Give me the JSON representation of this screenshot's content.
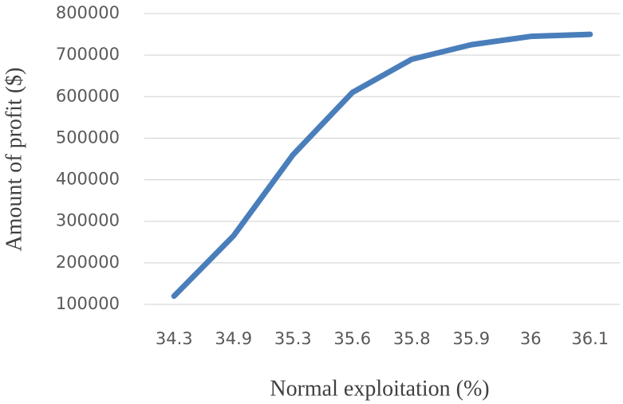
{
  "chart_data": {
    "type": "line",
    "x_label": "Normal exploitation (%)",
    "y_label": "Amount of profit ($)",
    "categories": [
      "34.3",
      "34.9",
      "35.3",
      "35.6",
      "35.8",
      "35.9",
      "36",
      "36.1"
    ],
    "values": [
      120000,
      265000,
      460000,
      610000,
      690000,
      725000,
      745000,
      750000
    ],
    "color": "#4a7ebb",
    "ylim": [
      100000,
      800000
    ],
    "yticks": [
      100000,
      200000,
      300000,
      400000,
      500000,
      600000,
      700000,
      800000
    ],
    "grid": true
  }
}
